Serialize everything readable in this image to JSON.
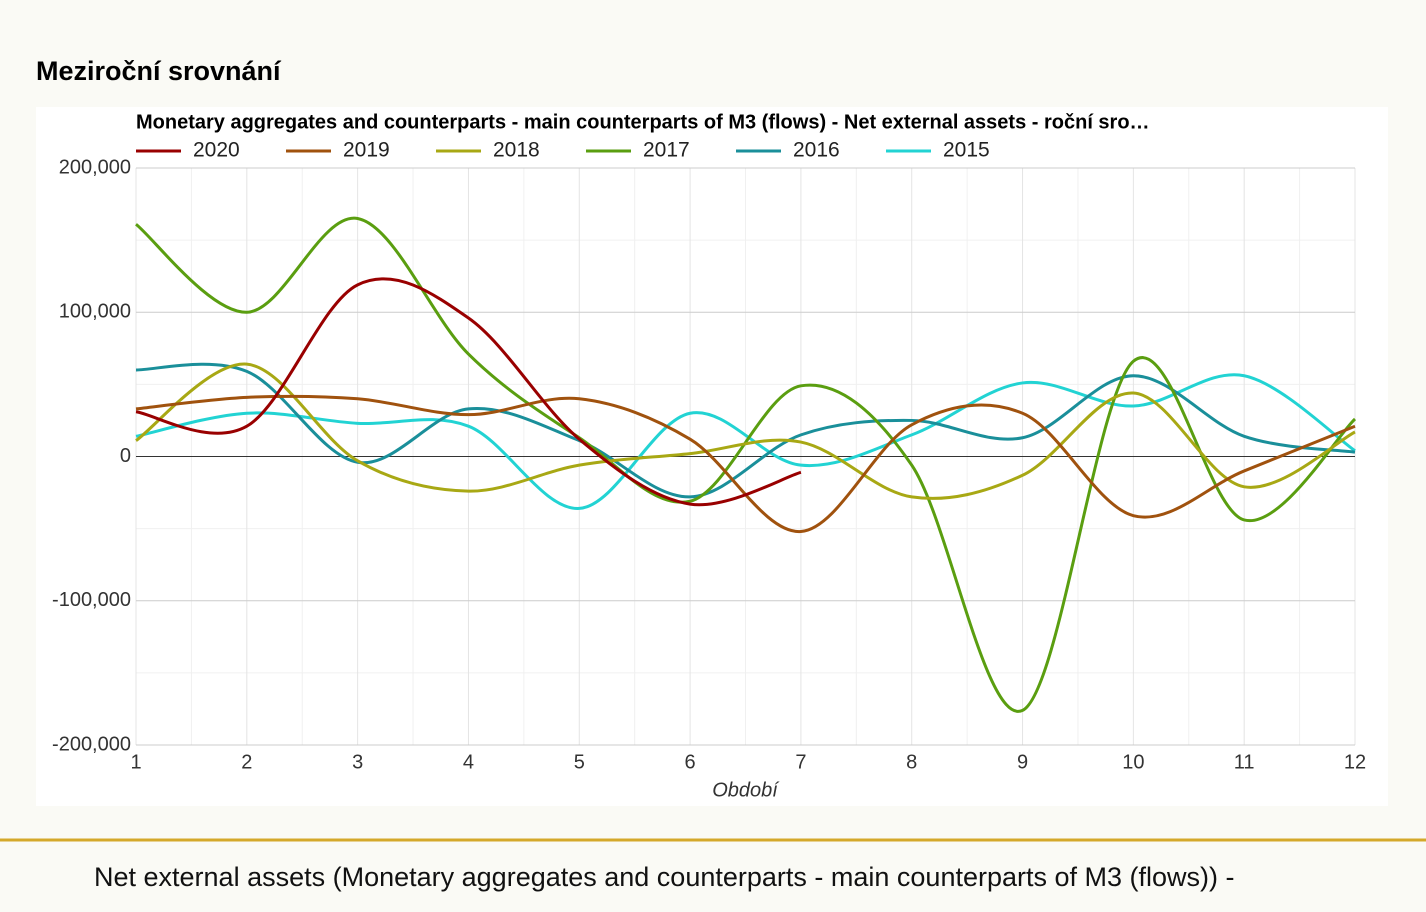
{
  "header": {
    "title": "Meziroční srovnání"
  },
  "chart_data": {
    "type": "line",
    "title": "Monetary aggregates and counterparts - main counterparts of M3 (flows) - Net external assets - roční sro…",
    "x_label": "Období",
    "x": [
      1,
      2,
      3,
      4,
      5,
      6,
      7,
      8,
      9,
      10,
      11,
      12
    ],
    "xlim": [
      1,
      12
    ],
    "xticks": [
      1,
      2,
      3,
      4,
      5,
      6,
      7,
      8,
      9,
      10,
      11,
      12
    ],
    "ylim": [
      -200000,
      200000
    ],
    "yticks": [
      {
        "value": -200000,
        "label": "-200,000"
      },
      {
        "value": -100000,
        "label": "-100,000"
      },
      0,
      {
        "value": 100000,
        "label": "100,000"
      },
      {
        "value": 200000,
        "label": "200,000"
      }
    ],
    "grid": true,
    "legend": "top",
    "series": [
      {
        "name": "2020",
        "color": "#990000",
        "values": [
          31000,
          21000,
          119000,
          96000,
          12000,
          -33000,
          -11000,
          null,
          null,
          null,
          null,
          null
        ]
      },
      {
        "name": "2019",
        "color": "#a0520e",
        "values": [
          33000,
          41000,
          40000,
          29000,
          40000,
          12000,
          -52000,
          22000,
          30000,
          -41000,
          -10000,
          21000
        ]
      },
      {
        "name": "2018",
        "color": "#a8a814",
        "values": [
          11000,
          64000,
          -3000,
          -24000,
          -6000,
          2000,
          10000,
          -28000,
          -13000,
          44000,
          -21000,
          17000
        ]
      },
      {
        "name": "2017",
        "color": "#5a9e10",
        "values": [
          161000,
          100000,
          165000,
          71000,
          13000,
          -31000,
          49000,
          -6000,
          -176000,
          66000,
          -44000,
          26000
        ]
      },
      {
        "name": "2016",
        "color": "#1a8f9a",
        "values": [
          60000,
          59000,
          -4000,
          33000,
          11000,
          -28000,
          15000,
          25000,
          13000,
          56000,
          14000,
          3000
        ]
      },
      {
        "name": "2015",
        "color": "#22d3d3",
        "values": [
          14000,
          30000,
          23000,
          21000,
          -36000,
          30000,
          -6000,
          15000,
          51000,
          35000,
          56000,
          4000
        ]
      }
    ]
  },
  "footer": {
    "text": "Net external assets (Monetary aggregates and counterparts - main counterparts of M3 (flows)) -"
  }
}
